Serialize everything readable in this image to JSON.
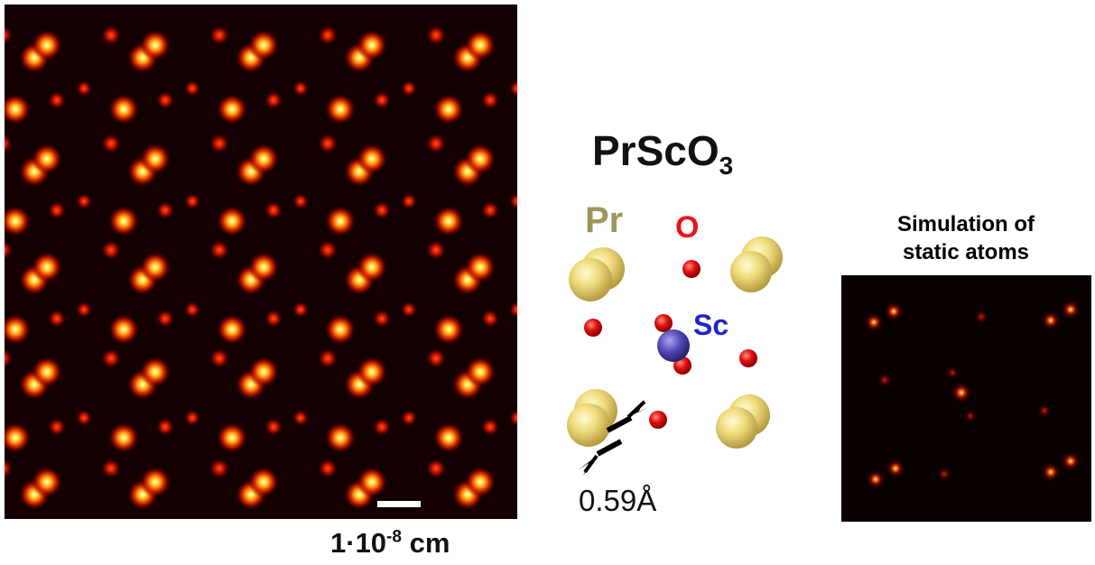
{
  "micrograph": {
    "scale_base": "1·10",
    "scale_exponent": "-8",
    "scale_unit": "cm"
  },
  "structure": {
    "formula_main": "PrScO",
    "formula_sub": "3",
    "labels": {
      "pr": "Pr",
      "o": "O",
      "sc": "Sc"
    },
    "distance": "0.59Å"
  },
  "simulation": {
    "title_line1": "Simulation of",
    "title_line2": "static atoms"
  },
  "colors": {
    "pr": "#ecd97a",
    "o": "#e8141c",
    "sc": "#5046b4",
    "glow": "#ff3a05",
    "background_dark": "#000000"
  }
}
